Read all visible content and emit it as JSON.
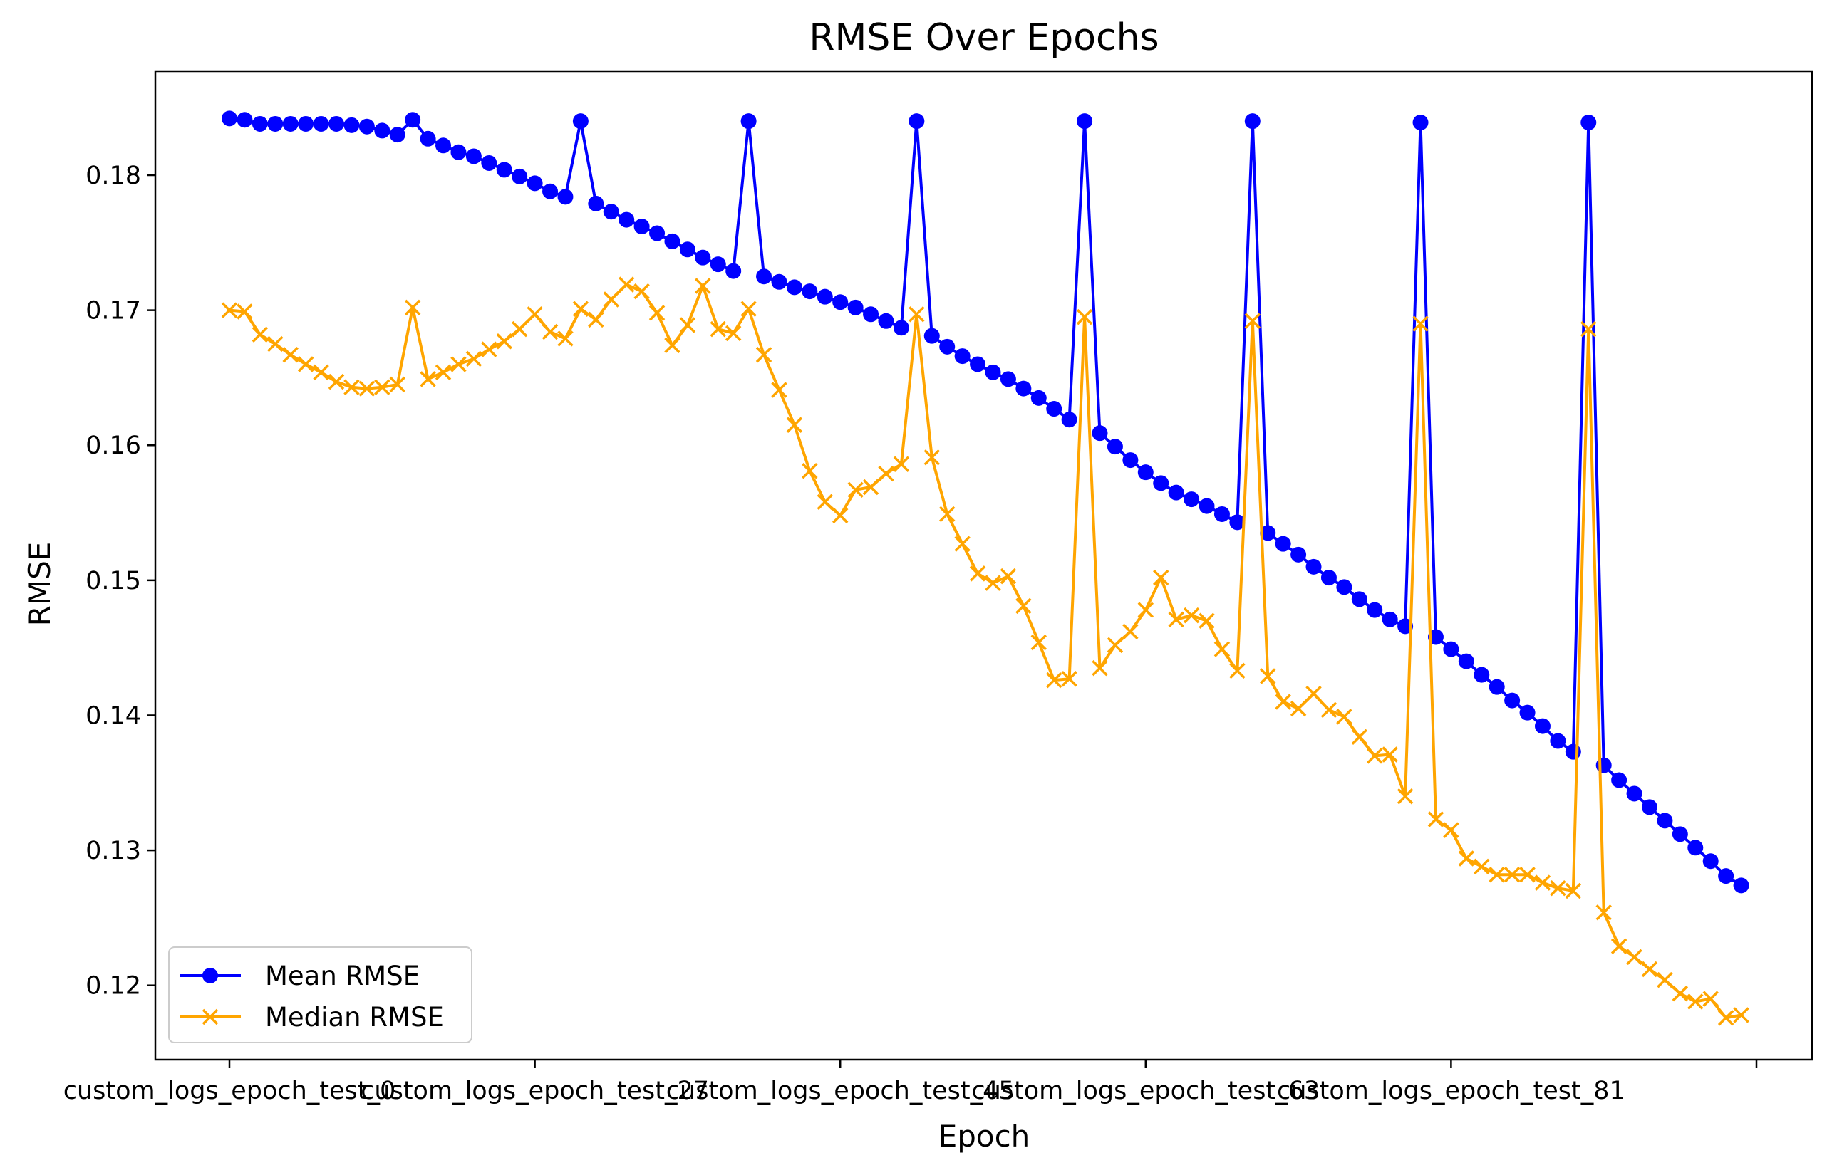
{
  "chart_data": {
    "type": "line",
    "title": "RMSE Over Epochs",
    "xlabel": "Epoch",
    "ylabel": "RMSE",
    "ylim": [
      0.1145,
      0.1877
    ],
    "yticks": [
      0.12,
      0.13,
      0.14,
      0.15,
      0.16,
      0.17,
      0.18
    ],
    "ytick_labels": [
      "0.12",
      "0.13",
      "0.14",
      "0.15",
      "0.16",
      "0.17",
      "0.18"
    ],
    "xtick_indices": [
      0,
      20,
      40,
      60,
      80,
      100
    ],
    "xtick_labels": [
      "custom_logs_epoch_test_0",
      "custom_logs_epoch_test_27",
      "custom_logs_epoch_test_45",
      "custom_logs_epoch_test_63",
      "custom_logs_epoch_test_81",
      ""
    ],
    "grid": false,
    "legend": "lower-left",
    "series": [
      {
        "name": "Mean RMSE",
        "color": "#0000ff",
        "marker": "circle",
        "values": [
          0.1842,
          0.1841,
          0.1838,
          0.1838,
          0.1838,
          0.1838,
          0.1838,
          0.1838,
          0.1837,
          0.1836,
          0.1833,
          0.183,
          0.1841,
          0.1827,
          0.1822,
          0.1817,
          0.1814,
          0.1809,
          0.1804,
          0.1799,
          0.1794,
          0.1788,
          0.1784,
          0.184,
          0.1779,
          0.1773,
          0.1767,
          0.1762,
          0.1757,
          0.1751,
          0.1745,
          0.1739,
          0.1734,
          0.1729,
          0.184,
          0.1725,
          0.1721,
          0.1717,
          0.1714,
          0.171,
          0.1706,
          0.1702,
          0.1697,
          0.1692,
          0.1687,
          0.184,
          0.1681,
          0.1673,
          0.1666,
          0.166,
          0.1654,
          0.1649,
          0.1642,
          0.1635,
          0.1627,
          0.1619,
          0.184,
          0.1609,
          0.1599,
          0.1589,
          0.158,
          0.1572,
          0.1565,
          0.156,
          0.1555,
          0.1549,
          0.1543,
          0.184,
          0.1535,
          0.1527,
          0.1519,
          0.151,
          0.1502,
          0.1495,
          0.1486,
          0.1478,
          0.1471,
          0.1466,
          0.1839,
          0.1458,
          0.1449,
          0.144,
          0.143,
          0.1421,
          0.1411,
          0.1402,
          0.1392,
          0.1381,
          0.1373,
          0.1839,
          0.1363,
          0.1352,
          0.1342,
          0.1332,
          0.1322,
          0.1312,
          0.1302,
          0.1292,
          0.1281,
          0.1274
        ]
      },
      {
        "name": "Median RMSE",
        "color": "#ffa500",
        "marker": "x",
        "values": [
          0.17,
          0.1699,
          0.1682,
          0.1675,
          0.1667,
          0.166,
          0.1654,
          0.1647,
          0.1643,
          0.1642,
          0.1643,
          0.1645,
          0.1702,
          0.1649,
          0.1654,
          0.166,
          0.1664,
          0.1671,
          0.1677,
          0.1686,
          0.1697,
          0.1684,
          0.1679,
          0.1701,
          0.1693,
          0.1708,
          0.1719,
          0.1714,
          0.1698,
          0.1674,
          0.1689,
          0.1718,
          0.1686,
          0.1683,
          0.1701,
          0.1667,
          0.1641,
          0.1615,
          0.1581,
          0.1558,
          0.1548,
          0.1567,
          0.1569,
          0.1579,
          0.1586,
          0.1697,
          0.1591,
          0.1549,
          0.1527,
          0.1505,
          0.1498,
          0.1503,
          0.1481,
          0.1454,
          0.1426,
          0.1427,
          0.1695,
          0.1435,
          0.1452,
          0.1462,
          0.1478,
          0.1502,
          0.1471,
          0.1474,
          0.147,
          0.1449,
          0.1433,
          0.1692,
          0.1429,
          0.141,
          0.1405,
          0.1416,
          0.1404,
          0.1399,
          0.1384,
          0.137,
          0.1371,
          0.134,
          0.169,
          0.1323,
          0.1315,
          0.1294,
          0.1288,
          0.1282,
          0.1282,
          0.1282,
          0.1276,
          0.1272,
          0.127,
          0.1686,
          0.1254,
          0.1229,
          0.1221,
          0.1212,
          0.1204,
          0.1194,
          0.1188,
          0.119,
          0.1176,
          0.1178
        ]
      }
    ]
  }
}
